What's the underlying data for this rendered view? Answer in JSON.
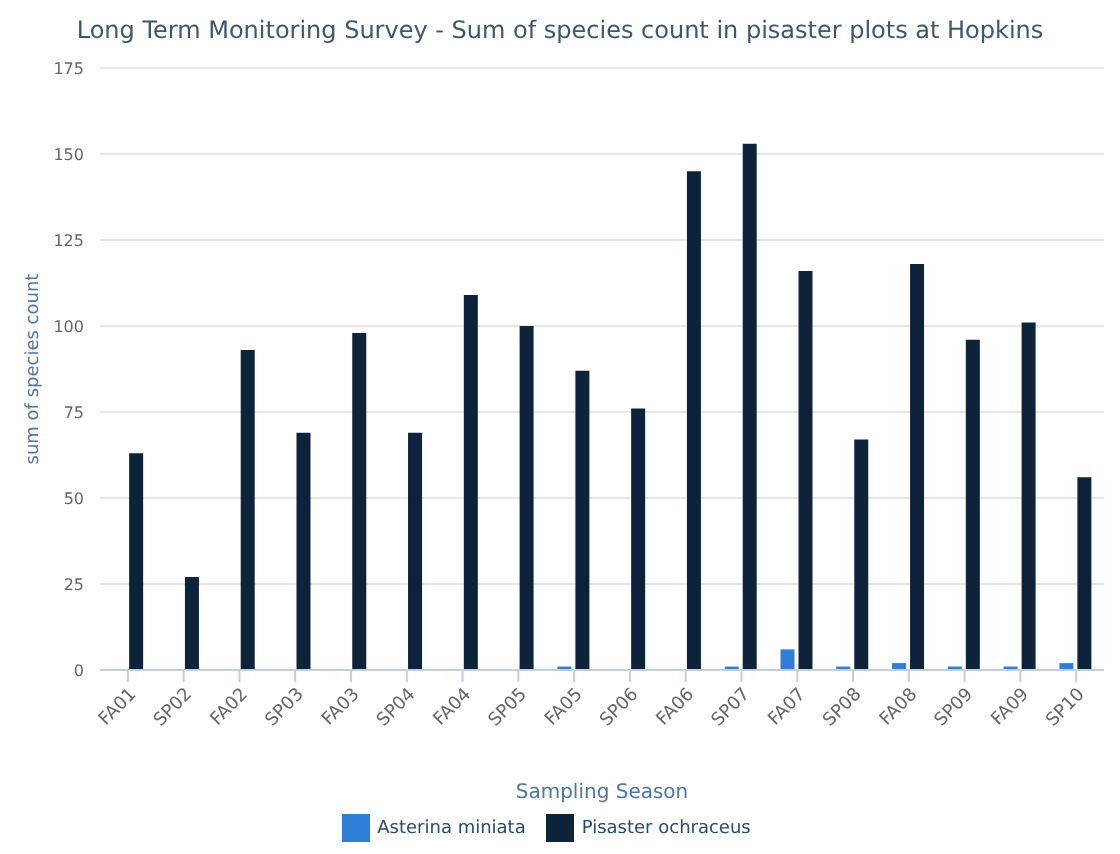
{
  "chart_data": {
    "type": "bar",
    "title": "Long Term Monitoring Survey - Sum of species count in pisaster plots at Hopkins",
    "xlabel": "Sampling Season",
    "ylabel": "sum of species count",
    "categories": [
      "FA01",
      "SP02",
      "FA02",
      "SP03",
      "FA03",
      "SP04",
      "FA04",
      "SP05",
      "FA05",
      "SP06",
      "FA06",
      "SP07",
      "FA07",
      "SP08",
      "FA08",
      "SP09",
      "FA09",
      "SP10"
    ],
    "series": [
      {
        "name": "Asterina miniata",
        "color": "#2f7ed8",
        "values": [
          0,
          0,
          0,
          0,
          0,
          0,
          0,
          0,
          1,
          0,
          0,
          1,
          6,
          1,
          2,
          1,
          1,
          2
        ]
      },
      {
        "name": "Pisaster ochraceus",
        "color": "#0d233a",
        "values": [
          63,
          27,
          93,
          69,
          98,
          69,
          109,
          100,
          87,
          76,
          145,
          153,
          116,
          67,
          118,
          96,
          101,
          56
        ]
      }
    ],
    "ylim": [
      0,
      175
    ],
    "yticks": [
      0,
      25,
      50,
      75,
      100,
      125,
      150,
      175
    ],
    "grid": "y",
    "legend": "bottom"
  }
}
